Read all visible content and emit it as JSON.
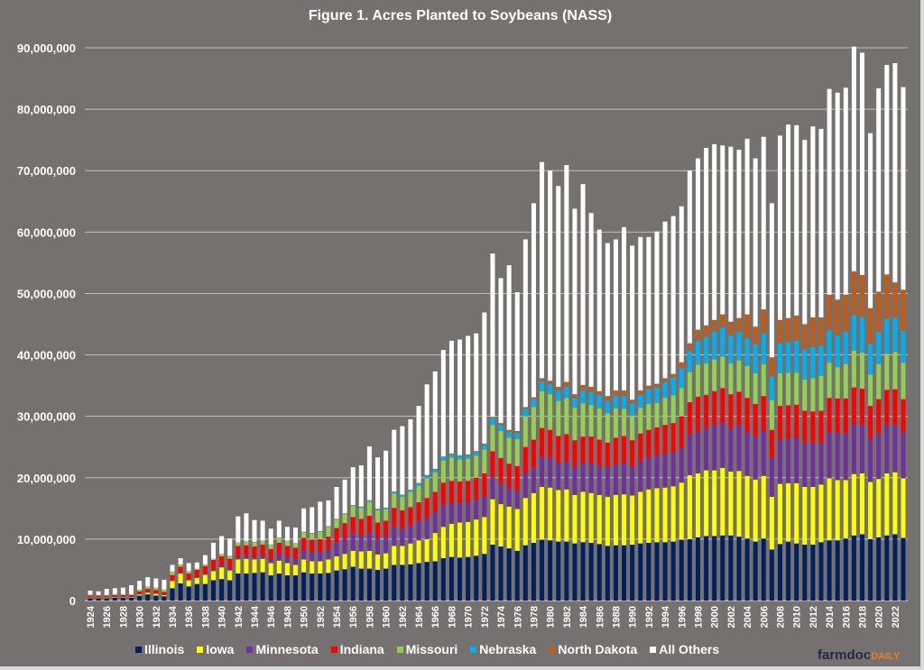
{
  "chart_data": {
    "type": "bar",
    "stacked": true,
    "title": "Figure 1. Acres Planted to Soybeans (NASS)",
    "xlabel": "",
    "ylabel": "",
    "ylim": [
      0,
      90000000
    ],
    "yticks": [
      "0",
      "10,000,000",
      "20,000,000",
      "30,000,000",
      "40,000,000",
      "50,000,000",
      "60,000,000",
      "70,000,000",
      "80,000,000",
      "90,000,000"
    ],
    "grid": true,
    "legend_position": "bottom",
    "x_start": 1924,
    "x_end": 2023,
    "x_tick_every": 2,
    "series": [
      {
        "name": "Illinois",
        "color": "#002060",
        "values": [
          400000,
          400000,
          400000,
          500000,
          500000,
          500000,
          800000,
          1000000,
          800000,
          700000,
          2000000,
          2800000,
          2300000,
          2700000,
          2700000,
          3300000,
          3500000,
          3300000,
          4400000,
          4400000,
          4500000,
          4600000,
          4100000,
          4400000,
          4100000,
          4100000,
          4600000,
          4400000,
          4400000,
          4500000,
          4900000,
          5100000,
          5500000,
          5200000,
          5200000,
          5000000,
          5200000,
          5800000,
          5800000,
          5900000,
          6100000,
          6300000,
          6400000,
          6900000,
          7100000,
          7000000,
          7100000,
          7300000,
          7600000,
          9100000,
          8800000,
          8500000,
          8100000,
          9000000,
          9400000,
          9900000,
          9800000,
          9600000,
          9600000,
          9300000,
          9500000,
          9400000,
          9200000,
          8900000,
          9000000,
          9000000,
          9100000,
          9300000,
          9400000,
          9500000,
          9500000,
          9600000,
          9900000,
          10000000,
          10300000,
          10500000,
          10500000,
          10600000,
          10600000,
          10400000,
          10100000,
          9600000,
          10100000,
          8300000,
          9200000,
          9600000,
          9300000,
          9100000,
          9100000,
          9500000,
          9800000,
          9800000,
          10100000,
          10600000,
          10800000,
          10000000,
          10300000,
          10600000,
          10800000,
          10200000
        ]
      },
      {
        "name": "Iowa",
        "color": "#FFFF00",
        "values": [
          100000,
          100000,
          100000,
          100000,
          100000,
          100000,
          200000,
          300000,
          300000,
          200000,
          1200000,
          1600000,
          1000000,
          1000000,
          1500000,
          1500000,
          1900000,
          1600000,
          2300000,
          2400000,
          2200000,
          2200000,
          2000000,
          2100000,
          2000000,
          1700000,
          2100000,
          2000000,
          2000000,
          2200000,
          2300000,
          2500000,
          2600000,
          2800000,
          2900000,
          2500000,
          2500000,
          3100000,
          3100000,
          3400000,
          3700000,
          3700000,
          4600000,
          5100000,
          5400000,
          5700000,
          5700000,
          5900000,
          6000000,
          7400000,
          6900000,
          6800000,
          6800000,
          7700000,
          8100000,
          8600000,
          8600000,
          8400000,
          8500000,
          7900000,
          8200000,
          8100000,
          8000000,
          8000000,
          8200000,
          8300000,
          8000000,
          8400000,
          8700000,
          8800000,
          8900000,
          9000000,
          9300000,
          10400000,
          10400000,
          10700000,
          10700000,
          11000000,
          10400000,
          10700000,
          10200000,
          10100000,
          10200000,
          8600000,
          9800000,
          9500000,
          9800000,
          9400000,
          9400000,
          9400000,
          10100000,
          9800000,
          9500000,
          10000000,
          9900000,
          9300000,
          9500000,
          10100000,
          10100000,
          9700000
        ]
      },
      {
        "name": "Minnesota",
        "color": "#7030A0",
        "values": [
          0,
          0,
          0,
          0,
          0,
          0,
          0,
          0,
          0,
          0,
          50000,
          100000,
          100000,
          100000,
          100000,
          200000,
          300000,
          300000,
          400000,
          400000,
          300000,
          400000,
          600000,
          1000000,
          1000000,
          1000000,
          1400000,
          1400000,
          1500000,
          1600000,
          2300000,
          2500000,
          2800000,
          2500000,
          2900000,
          2700000,
          2800000,
          3100000,
          2800000,
          2900000,
          3100000,
          3400000,
          3300000,
          3600000,
          3300000,
          3200000,
          3200000,
          3200000,
          3300000,
          3600000,
          3300000,
          3000000,
          2900000,
          4000000,
          4100000,
          4900000,
          4800000,
          4400000,
          4500000,
          4600000,
          4700000,
          4900000,
          4700000,
          4800000,
          4900000,
          5000000,
          4600000,
          5000000,
          5100000,
          5300000,
          5500000,
          5500000,
          5600000,
          6600000,
          6800000,
          6800000,
          7300000,
          7300000,
          7000000,
          7400000,
          7100000,
          6900000,
          7300000,
          6300000,
          7200000,
          7200000,
          7400000,
          7100000,
          7100000,
          6800000,
          7500000,
          7700000,
          7600000,
          8100000,
          7800000,
          7000000,
          7400000,
          7800000,
          7600000,
          7500000
        ]
      },
      {
        "name": "Indiana",
        "color": "#FF0000",
        "values": [
          300000,
          300000,
          300000,
          300000,
          300000,
          300000,
          500000,
          600000,
          600000,
          500000,
          900000,
          1000000,
          1000000,
          1200000,
          1300000,
          1600000,
          1500000,
          1600000,
          1800000,
          1800000,
          1800000,
          1900000,
          1700000,
          1900000,
          1800000,
          1800000,
          2100000,
          2100000,
          2100000,
          2100000,
          2300000,
          2500000,
          2700000,
          2800000,
          2800000,
          2500000,
          2500000,
          3100000,
          3000000,
          3000000,
          3100000,
          3300000,
          3400000,
          3600000,
          3700000,
          3500000,
          3500000,
          3600000,
          3800000,
          4200000,
          4200000,
          4000000,
          4100000,
          4300000,
          4600000,
          4700000,
          4600000,
          4400000,
          4500000,
          4300000,
          4300000,
          4300000,
          4300000,
          4000000,
          4400000,
          4500000,
          4400000,
          4500000,
          4600000,
          4600000,
          4700000,
          4800000,
          5200000,
          5300000,
          5700000,
          5500000,
          5600000,
          5700000,
          5600000,
          5500000,
          5600000,
          5400000,
          5700000,
          4600000,
          5500000,
          5500000,
          5400000,
          5300000,
          5200000,
          5200000,
          5600000,
          5600000,
          5700000,
          6000000,
          6000000,
          5400000,
          5600000,
          5800000,
          5900000,
          5400000
        ]
      },
      {
        "name": "Missouri",
        "color": "#92D050",
        "values": [
          200000,
          100000,
          100000,
          100000,
          100000,
          100000,
          300000,
          400000,
          400000,
          400000,
          600000,
          400000,
          400000,
          200000,
          300000,
          200000,
          400000,
          500000,
          500000,
          600000,
          700000,
          600000,
          700000,
          800000,
          800000,
          700000,
          900000,
          1000000,
          1200000,
          1600000,
          1400000,
          1500000,
          1800000,
          1800000,
          2300000,
          2000000,
          1900000,
          2300000,
          2200000,
          2500000,
          2700000,
          3200000,
          3200000,
          3600000,
          3800000,
          3600000,
          3600000,
          3600000,
          3900000,
          4300000,
          4400000,
          4200000,
          4400000,
          5000000,
          5300000,
          6000000,
          5800000,
          5700000,
          5900000,
          5300000,
          5400000,
          5100000,
          5100000,
          4800000,
          4800000,
          4400000,
          4000000,
          4200000,
          4200000,
          4000000,
          4400000,
          4500000,
          4600000,
          4900000,
          5200000,
          5100000,
          5100000,
          5100000,
          5000000,
          5100000,
          5200000,
          5000000,
          5200000,
          4800000,
          5300000,
          5300000,
          5200000,
          5100000,
          5400000,
          5700000,
          5700000,
          5100000,
          5600000,
          6000000,
          5900000,
          5100000,
          5700000,
          5900000,
          6100000,
          5900000
        ]
      },
      {
        "name": "Nebraska",
        "color": "#00B0F0",
        "values": [
          0,
          0,
          0,
          0,
          0,
          0,
          0,
          0,
          0,
          0,
          0,
          0,
          0,
          0,
          0,
          0,
          0,
          0,
          50000,
          50000,
          50000,
          50000,
          50000,
          50000,
          50000,
          50000,
          50000,
          50000,
          50000,
          50000,
          50000,
          50000,
          100000,
          150000,
          200000,
          200000,
          200000,
          300000,
          300000,
          300000,
          400000,
          500000,
          500000,
          600000,
          600000,
          600000,
          600000,
          600000,
          800000,
          1100000,
          1000000,
          1000000,
          1000000,
          1200000,
          1300000,
          1600000,
          1600000,
          1700000,
          1800000,
          1600000,
          2100000,
          2100000,
          2200000,
          2000000,
          2000000,
          2100000,
          2000000,
          2100000,
          2400000,
          2500000,
          2600000,
          2900000,
          3200000,
          3500000,
          3900000,
          4300000,
          4600000,
          4800000,
          4600000,
          4600000,
          4500000,
          4700000,
          5000000,
          3900000,
          4900000,
          5000000,
          5200000,
          4900000,
          5100000,
          4900000,
          5300000,
          5200000,
          5300000,
          5700000,
          5700000,
          5000000,
          5200000,
          5700000,
          5600000,
          5200000
        ]
      },
      {
        "name": "North Dakota",
        "color": "#C55A11",
        "values": [
          0,
          0,
          0,
          0,
          0,
          0,
          0,
          0,
          0,
          0,
          0,
          0,
          0,
          0,
          0,
          0,
          0,
          0,
          0,
          0,
          0,
          0,
          0,
          0,
          0,
          0,
          50000,
          50000,
          50000,
          50000,
          50000,
          50000,
          50000,
          50000,
          50000,
          50000,
          50000,
          50000,
          50000,
          50000,
          50000,
          50000,
          50000,
          50000,
          50000,
          50000,
          100000,
          150000,
          150000,
          200000,
          300000,
          300000,
          300000,
          300000,
          300000,
          500000,
          600000,
          600000,
          800000,
          600000,
          900000,
          900000,
          600000,
          800000,
          900000,
          900000,
          600000,
          700000,
          600000,
          600000,
          600000,
          600000,
          1000000,
          1200000,
          1800000,
          1900000,
          1900000,
          2100000,
          2200000,
          2300000,
          3900000,
          2900000,
          3900000,
          3100000,
          3800000,
          3900000,
          4100000,
          4100000,
          4800000,
          4600000,
          5800000,
          5800000,
          6000000,
          7200000,
          6900000,
          5800000,
          6600000,
          7200000,
          5700000,
          6700000
        ]
      },
      {
        "name": "All Others",
        "color": "#FFFFFF",
        "values": [
          600000,
          600000,
          1000000,
          1000000,
          1100000,
          1500000,
          1400000,
          1500000,
          1500000,
          1600000,
          1050000,
          1000000,
          1300000,
          1000000,
          1500000,
          2600000,
          2900000,
          2800000,
          4250000,
          4550000,
          3550000,
          3250000,
          2550000,
          2750000,
          2250000,
          2550000,
          3800000,
          4200000,
          4800000,
          4200000,
          5200000,
          5500000,
          6150000,
          6700000,
          8750000,
          8350000,
          9250000,
          10050000,
          11150000,
          11450000,
          12550000,
          14750000,
          15850000,
          17350000,
          18350000,
          18850000,
          19300000,
          19150000,
          21350000,
          26600000,
          23600000,
          26800000,
          22600000,
          27300000,
          31600000,
          35200000,
          34200000,
          32700000,
          35300000,
          30200000,
          32700000,
          28300000,
          26300000,
          24900000,
          24600000,
          26600000,
          25100000,
          25000000,
          24200000,
          24800000,
          25500000,
          25700000,
          25400000,
          28100000,
          27900000,
          28900000,
          28600000,
          27500000,
          28500000,
          27400000,
          28600000,
          27400000,
          28100000,
          25100000,
          30000000,
          31500000,
          31000000,
          30000000,
          31100000,
          30700000,
          33500000,
          33700000,
          33700000,
          36600000,
          36200000,
          28500000,
          33100000,
          34100000,
          35700000,
          33000000
        ]
      }
    ]
  },
  "logo": {
    "part1": "farmdoc",
    "part2": "DAILY"
  }
}
